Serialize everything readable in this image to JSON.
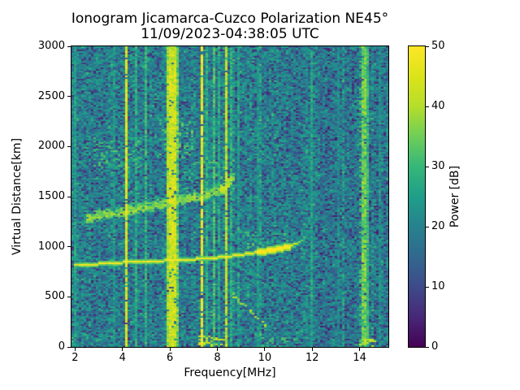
{
  "chart_data": {
    "type": "heatmap",
    "title": "Ionogram Jicamarca-Cuzco Polarization NE45°",
    "subtitle": "11/09/2023-04:38:05 UTC",
    "xlabel": "Frequency[MHz]",
    "ylabel": "Virtual Distance[km]",
    "colorbar_label": "Power [dB]",
    "xlim": [
      1.85,
      15.21
    ],
    "ylim": [
      0,
      3000
    ],
    "clim": [
      0,
      50
    ],
    "xticks": [
      2,
      4,
      6,
      8,
      10,
      12,
      14
    ],
    "yticks": [
      0,
      500,
      1000,
      1500,
      2000,
      2500,
      3000
    ],
    "colorbar_ticks": [
      0,
      10,
      20,
      30,
      40,
      50
    ],
    "colormap": "viridis",
    "colormap_stops": [
      "#440154",
      "#482878",
      "#3e4a89",
      "#31688e",
      "#26828e",
      "#1f9e89",
      "#35b779",
      "#6ece58",
      "#b5de2b",
      "#dce319",
      "#fde725"
    ],
    "noise": {
      "mean_db": 20,
      "low_db": 5,
      "high_db": 31,
      "dark_speckle_fraction": 0.18
    },
    "rfi_lines": [
      {
        "freq": 2.05,
        "power": 26,
        "width": 1
      },
      {
        "freq": 3.65,
        "power": 24,
        "width": 1
      },
      {
        "freq": 4.15,
        "power": 46,
        "width": 1
      },
      {
        "freq": 4.6,
        "power": 28,
        "width": 1
      },
      {
        "freq": 4.95,
        "power": 30,
        "width": 1
      },
      {
        "freq": 5.95,
        "power": 40,
        "width": 1
      },
      {
        "freq": 6.12,
        "power": 44,
        "width": 3
      },
      {
        "freq": 6.32,
        "power": 33,
        "width": 1
      },
      {
        "freq": 7.35,
        "power": 50,
        "width": 1
      },
      {
        "freq": 7.55,
        "power": 29,
        "width": 1
      },
      {
        "freq": 7.9,
        "power": 32,
        "width": 1
      },
      {
        "freq": 8.1,
        "power": 28,
        "width": 1
      },
      {
        "freq": 8.35,
        "power": 42,
        "width": 1
      },
      {
        "freq": 8.6,
        "power": 29,
        "width": 1
      },
      {
        "freq": 8.85,
        "power": 25,
        "width": 1
      },
      {
        "freq": 9.7,
        "power": 24,
        "width": 1
      },
      {
        "freq": 12.0,
        "power": 26,
        "width": 1
      },
      {
        "freq": 13.1,
        "power": 22,
        "width": 1
      },
      {
        "freq": 14.15,
        "power": 36,
        "width": 2
      },
      {
        "freq": 14.35,
        "power": 30,
        "width": 1
      },
      {
        "freq": 14.9,
        "power": 23,
        "width": 1
      }
    ],
    "echo_traces": [
      {
        "name": "f-region-first-hop",
        "points": [
          [
            1.95,
            810
          ],
          [
            3,
            828
          ],
          [
            4,
            843
          ],
          [
            5,
            853
          ],
          [
            6,
            862
          ],
          [
            7,
            874
          ],
          [
            8,
            892
          ],
          [
            8.6,
            906
          ],
          [
            9.2,
            926
          ],
          [
            9.8,
            948
          ],
          [
            10.4,
            968
          ],
          [
            10.9,
            992
          ],
          [
            11.2,
            1015
          ],
          [
            11.5,
            1055
          ],
          [
            11.75,
            1110
          ]
        ],
        "power": 49,
        "thickness_km": 30,
        "style": "solid",
        "bright_blob": {
          "f_range": [
            9.7,
            11.15
          ],
          "power": 51,
          "thicken": 2.0
        },
        "fade_after_mhz": 11.15
      },
      {
        "name": "spread-second-hop",
        "points": [
          [
            2.5,
            1265
          ],
          [
            3,
            1292
          ],
          [
            3.5,
            1315
          ],
          [
            4,
            1335
          ],
          [
            4.5,
            1356
          ],
          [
            5,
            1380
          ],
          [
            5.5,
            1400
          ],
          [
            6,
            1424
          ],
          [
            6.5,
            1448
          ],
          [
            7,
            1474
          ],
          [
            7.5,
            1504
          ],
          [
            8,
            1540
          ],
          [
            8.3,
            1575
          ],
          [
            8.6,
            1650
          ],
          [
            8.75,
            1730
          ]
        ],
        "power": 37,
        "thickness_km": 80,
        "style": "diffuse",
        "bright_knot": {
          "f_range": [
            8.1,
            8.65
          ],
          "power_boost": 5
        }
      }
    ],
    "descending_trace": {
      "points": [
        [
          8.55,
          540
        ],
        [
          9.0,
          450
        ],
        [
          9.4,
          365
        ],
        [
          9.8,
          270
        ],
        [
          10.05,
          215
        ]
      ],
      "power": 38,
      "density": 0.35
    },
    "diffuse_clouds": [
      {
        "f_range": [
          2.8,
          4.7
        ],
        "d_range": [
          1800,
          2090
        ],
        "power": 30,
        "density": 0.18
      },
      {
        "f_range": [
          5.6,
          6.8
        ],
        "d_range": [
          1900,
          2270
        ],
        "power": 31,
        "density": 0.26
      },
      {
        "f_range": [
          8.6,
          10.7
        ],
        "d_range": [
          1930,
          2190
        ],
        "power": 26,
        "density": 0.09
      },
      {
        "f_range": [
          6.6,
          8.6
        ],
        "d_range": [
          1560,
          1840
        ],
        "power": 29,
        "density": 0.13
      },
      {
        "f_range": [
          8.6,
          9.7
        ],
        "d_range": [
          1120,
          1210
        ],
        "power": 28,
        "density": 0.16
      },
      {
        "f_range": [
          9.3,
          11.2
        ],
        "d_range": [
          990,
          1120
        ],
        "power": 30,
        "density": 0.2
      },
      {
        "f_range": [
          2.3,
          2.6
        ],
        "d_range": [
          1200,
          1320
        ],
        "power": 27,
        "density": 0.18
      },
      {
        "f_range": [
          7.2,
          8.4
        ],
        "d_range": [
          10,
          110
        ],
        "power": 40,
        "density": 0.38
      },
      {
        "f_range": [
          9.9,
          11.3
        ],
        "d_range": [
          5,
          90
        ],
        "power": 29,
        "density": 0.28
      },
      {
        "f_range": [
          14.0,
          14.5
        ],
        "d_range": [
          5,
          80
        ],
        "power": 40,
        "density": 0.4
      }
    ]
  }
}
